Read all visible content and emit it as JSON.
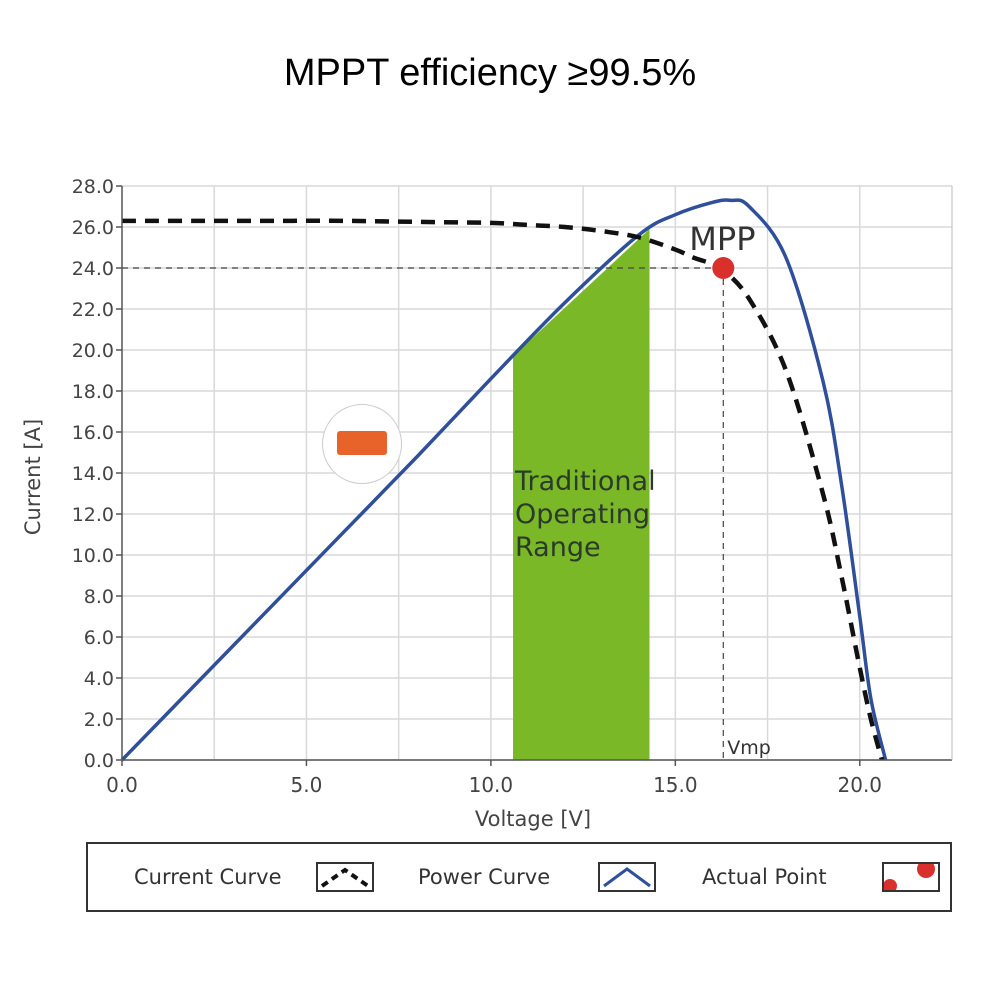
{
  "title": "MPPT efficiency ≥99.5%",
  "chart_data": {
    "type": "line",
    "xlabel": "Voltage [V]",
    "ylabel": "Current [A]",
    "xlim": [
      0,
      22.5
    ],
    "ylim": [
      0,
      28
    ],
    "x_ticks": [
      "0.0",
      "5.0",
      "10.0",
      "15.0",
      "20.0"
    ],
    "y_ticks": [
      "0.0",
      "2.0",
      "4.0",
      "6.0",
      "8.0",
      "10.0",
      "12.0",
      "14.0",
      "16.0",
      "18.0",
      "20.0",
      "22.0",
      "24.0",
      "26.0",
      "28.0"
    ],
    "grid": true,
    "series": [
      {
        "name": "Current Curve",
        "style": "dashed",
        "color": "#111111",
        "x": [
          0,
          2,
          4,
          6,
          8,
          10,
          11,
          12,
          13,
          14,
          15,
          15.5,
          16,
          16.3,
          17,
          18,
          19,
          19.5,
          20,
          20.3,
          20.6
        ],
        "y": [
          26.3,
          26.3,
          26.3,
          26.3,
          26.25,
          26.2,
          26.1,
          26.0,
          25.8,
          25.5,
          24.9,
          24.5,
          24.2,
          23.9,
          22.5,
          19.0,
          13.0,
          9.0,
          4.5,
          2.0,
          0
        ]
      },
      {
        "name": "Power Curve",
        "style": "solid",
        "color": "#2f4f9b",
        "x": [
          0,
          2,
          4,
          6,
          8,
          10,
          12,
          14,
          15,
          16,
          16.5,
          17,
          18,
          19,
          19.5,
          20,
          20.3,
          20.7
        ],
        "y": [
          0,
          3.7,
          7.4,
          11.1,
          14.8,
          18.6,
          22.3,
          25.6,
          26.6,
          27.2,
          27.3,
          27.0,
          24.5,
          18.5,
          13.5,
          7.0,
          3.0,
          0
        ]
      }
    ],
    "shaded_region": {
      "label": "Traditional Operating Range",
      "x_start": 10.6,
      "x_end": 14.3,
      "color": "#7ab828"
    },
    "mpp": {
      "label": "MPP",
      "x": 16.3,
      "y": 24.0,
      "color": "#d9302c",
      "vlabel": "Vmp"
    },
    "legend_position": "bottom"
  },
  "legend": {
    "current_label": "Current Curve",
    "power_label": "Power Curve",
    "point_label": "Actual Point"
  },
  "colors": {
    "grid": "#d9d9d9",
    "axis": "#555555",
    "power": "#2f4f9b",
    "current": "#111111",
    "range": "#7ab828",
    "point": "#d9302c"
  }
}
